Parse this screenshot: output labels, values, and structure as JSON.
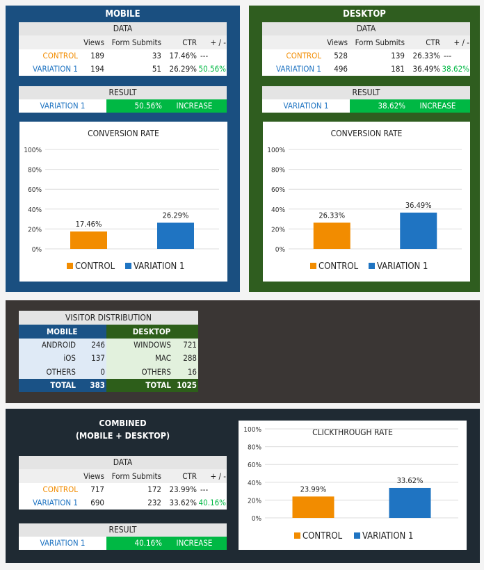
{
  "colors": {
    "mobile": "#1a4f80",
    "desktop": "#2f5d1f",
    "distribution_bg": "#3a3634",
    "combined_bg": "#1f2a33",
    "control": "#f28c00",
    "variation": "#1f74c2",
    "increase": "#00b844"
  },
  "mobile": {
    "title": "MOBILE",
    "data": {
      "header": "DATA",
      "columns": [
        "",
        "Views",
        "Form Submits",
        "CTR",
        "+ / -"
      ],
      "rows": [
        [
          "CONTROL",
          "189",
          "33",
          "17.46%",
          "---"
        ],
        [
          "VARIATION 1",
          "194",
          "51",
          "26.29%",
          "50.56%"
        ]
      ]
    },
    "result": {
      "header": "RESULT",
      "winner": "VARIATION 1",
      "lift": "50.56%",
      "verdict": "INCREASE"
    }
  },
  "desktop": {
    "title": "DESKTOP",
    "data": {
      "header": "DATA",
      "columns": [
        "",
        "Views",
        "Form Submits",
        "CTR",
        "+ / -"
      ],
      "rows": [
        [
          "CONTROL",
          "528",
          "139",
          "26.33%",
          "---"
        ],
        [
          "VARIATION 1",
          "496",
          "181",
          "36.49%",
          "38.62%"
        ]
      ]
    },
    "result": {
      "header": "RESULT",
      "winner": "VARIATION 1",
      "lift": "38.62%",
      "verdict": "INCREASE"
    }
  },
  "distribution": {
    "header": "VISITOR DISTRIBUTION",
    "mobile": {
      "label": "MOBILE",
      "rows": [
        [
          "ANDROID",
          "246"
        ],
        [
          "iOS",
          "137"
        ],
        [
          "OTHERS",
          "0"
        ]
      ],
      "total": [
        "TOTAL",
        "383"
      ]
    },
    "desktop": {
      "label": "DESKTOP",
      "rows": [
        [
          "WINDOWS",
          "721"
        ],
        [
          "MAC",
          "288"
        ],
        [
          "OTHERS",
          "16"
        ]
      ],
      "total": [
        "TOTAL",
        "1025"
      ]
    }
  },
  "combined": {
    "title": "COMBINED",
    "subtitle": "(MOBILE + DESKTOP)",
    "data": {
      "header": "DATA",
      "columns": [
        "",
        "Views",
        "Form Submits",
        "CTR",
        "+ / -"
      ],
      "rows": [
        [
          "CONTROL",
          "717",
          "172",
          "23.99%",
          "---"
        ],
        [
          "VARIATION 1",
          "690",
          "232",
          "33.62%",
          "40.16%"
        ]
      ]
    },
    "result": {
      "header": "RESULT",
      "winner": "VARIATION 1",
      "lift": "40.16%",
      "verdict": "INCREASE"
    }
  },
  "chart_data": [
    {
      "type": "bar",
      "title": "CONVERSION RATE",
      "categories": [
        "CONTROL",
        "VARIATION 1"
      ],
      "values": [
        17.46,
        26.29
      ],
      "data_labels": [
        "17.46%",
        "26.29%"
      ],
      "yticks": [
        "0%",
        "20%",
        "40%",
        "60%",
        "80%",
        "100%"
      ],
      "ylim": [
        0,
        100
      ],
      "grid": true,
      "legend": "bottom",
      "colors": [
        "#f28c00",
        "#1f74c2"
      ]
    },
    {
      "type": "bar",
      "title": "CONVERSION RATE",
      "categories": [
        "CONTROL",
        "VARIATION 1"
      ],
      "values": [
        26.33,
        36.49
      ],
      "data_labels": [
        "26.33%",
        "36.49%"
      ],
      "yticks": [
        "0%",
        "20%",
        "40%",
        "60%",
        "80%",
        "100%"
      ],
      "ylim": [
        0,
        100
      ],
      "grid": true,
      "legend": "bottom",
      "colors": [
        "#f28c00",
        "#1f74c2"
      ]
    },
    {
      "type": "bar",
      "title": "CLICKTHROUGH RATE",
      "categories": [
        "CONTROL",
        "VARIATION 1"
      ],
      "values": [
        23.99,
        33.62
      ],
      "data_labels": [
        "23.99%",
        "33.62%"
      ],
      "yticks": [
        "0%",
        "20%",
        "40%",
        "60%",
        "80%",
        "100%"
      ],
      "ylim": [
        0,
        100
      ],
      "grid": true,
      "legend": "bottom",
      "colors": [
        "#f28c00",
        "#1f74c2"
      ]
    }
  ]
}
